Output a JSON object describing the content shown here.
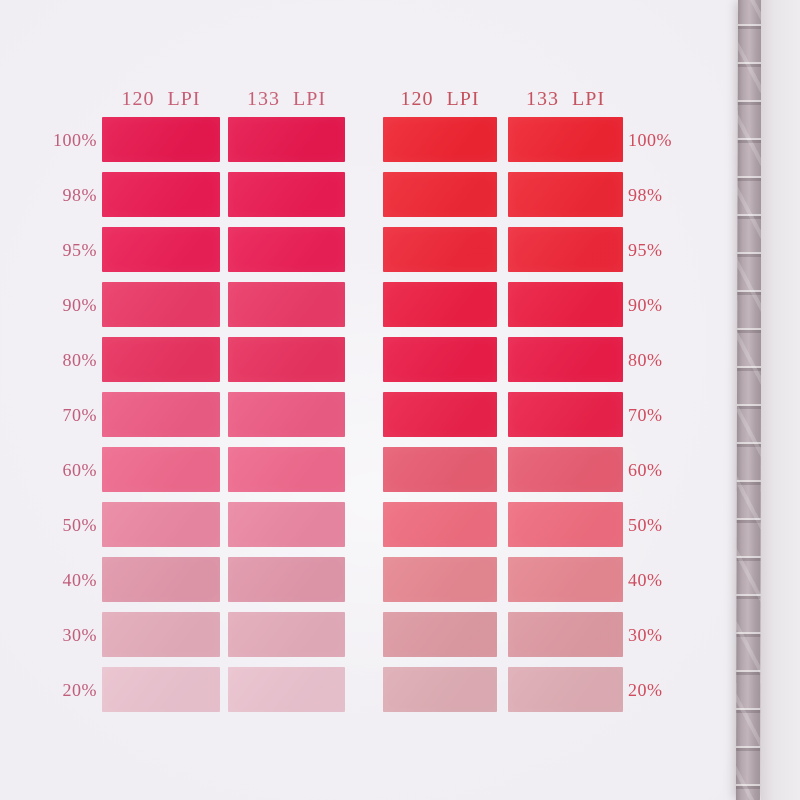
{
  "photo": {
    "background_color": "#f1eff3",
    "binding_strip": {
      "base_color": "#b2a6ab",
      "glint_color": "#e8e2e6"
    },
    "page_edge_color": "#e6e2e6"
  },
  "chart_data": {
    "type": "table",
    "layout": "two swatch groups, each with two halftone-screen columns and 11 tint rows; percent labels on outer sides",
    "tint_labels": [
      "100%",
      "98%",
      "95%",
      "90%",
      "80%",
      "70%",
      "60%",
      "50%",
      "40%",
      "30%",
      "20%"
    ],
    "groups": [
      {
        "id": "left",
        "label_side": "left",
        "column_headers": [
          "120 LPI",
          "133 LPI"
        ],
        "row_labels": [
          "100%",
          "98%",
          "95%",
          "90%",
          "80%",
          "70%",
          "60%",
          "50%",
          "40%",
          "30%",
          "20%"
        ],
        "row_colors": [
          "#e6184e",
          "#e91c53",
          "#ea2056",
          "#e93a67",
          "#e7325f",
          "#ec5c84",
          "#ee698d",
          "#ea87a2",
          "#e097aa",
          "#e3abba",
          "#e9c2ce"
        ],
        "label_color": "#c05d7b",
        "header_color": "#c75f76"
      },
      {
        "id": "right",
        "label_side": "right",
        "column_headers": [
          "120 LPI",
          "133 LPI"
        ],
        "row_labels": [
          "100%",
          "98%",
          "95%",
          "90%",
          "80%",
          "70%",
          "60%",
          "50%",
          "40%",
          "30%",
          "20%"
        ],
        "row_colors": [
          "#ee2532",
          "#ee2835",
          "#ed2839",
          "#eb1f43",
          "#e91d48",
          "#ea234b",
          "#e75d72",
          "#ee6d7f",
          "#e58791",
          "#dd99a2",
          "#deacb4"
        ],
        "label_color": "#d04b5e",
        "header_color": "#c5525f"
      }
    ]
  }
}
